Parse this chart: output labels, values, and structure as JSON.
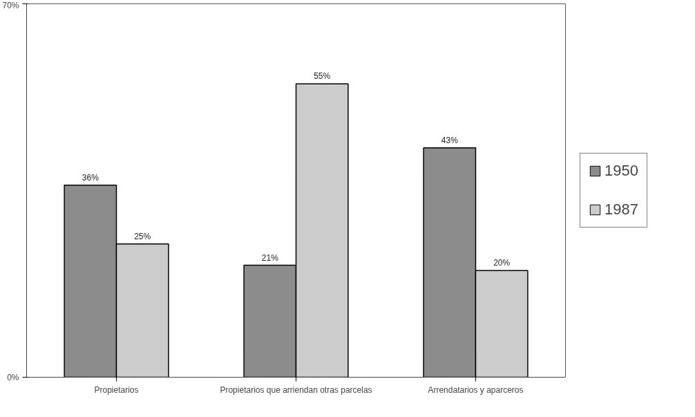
{
  "chart_data": {
    "type": "bar",
    "categories": [
      "Propietarios",
      "Propietarios que arriendan otras parcelas",
      "Arrendatarios y aparceros"
    ],
    "series": [
      {
        "name": "1950",
        "color": "#8c8c8c",
        "values": [
          36,
          21,
          43
        ],
        "value_labels": [
          "36%",
          "21%",
          "43%"
        ]
      },
      {
        "name": "1987",
        "color": "#cccccc",
        "values": [
          25,
          55,
          20
        ],
        "value_labels": [
          "25%",
          "55%",
          "20%"
        ]
      }
    ],
    "ylim": [
      0,
      70
    ],
    "yticks": [
      {
        "value": 0,
        "label": "0%"
      },
      {
        "value": 70,
        "label": "70%"
      }
    ],
    "grid": false,
    "legend": "right"
  }
}
